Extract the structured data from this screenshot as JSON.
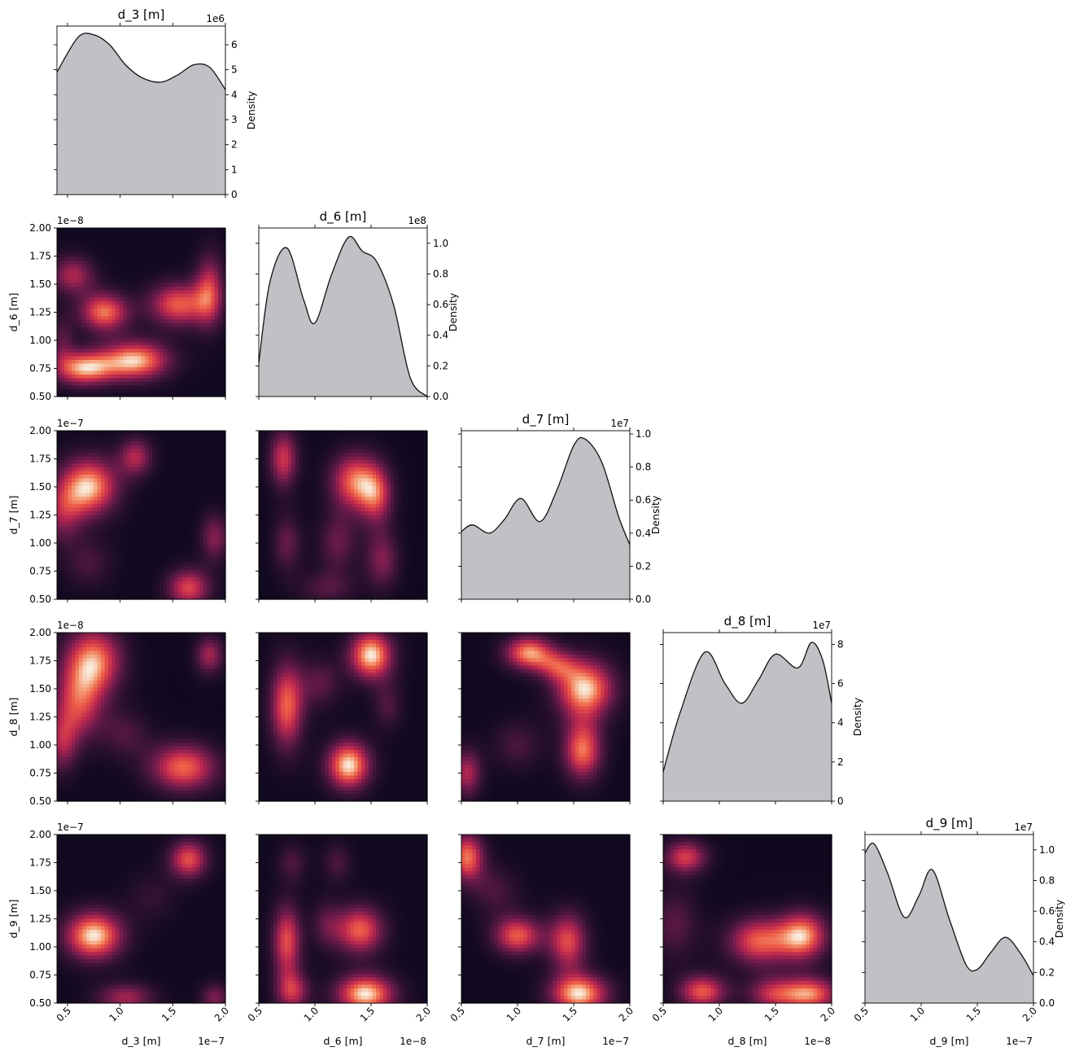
{
  "chart_data": {
    "type": "corner-plot",
    "parameters": [
      "d_3 [m]",
      "d_6 [m]",
      "d_7 [m]",
      "d_8 [m]",
      "d_9 [m]"
    ],
    "ranges": [
      [
        4e-08,
        2e-07
      ],
      [
        5e-09,
        2e-08
      ],
      [
        5e-08,
        2e-07
      ],
      [
        5e-09,
        2e-08
      ],
      [
        5e-08,
        2e-07
      ]
    ],
    "offsets": [
      "1e−7",
      "1e−8",
      "1e−7",
      "1e−8",
      "1e−7"
    ],
    "ticks": [
      {
        "values": [
          0.5,
          1.0,
          1.5,
          2.0
        ],
        "labels": [
          "0.5",
          "1.0",
          "1.5",
          "2.0"
        ]
      },
      {
        "values": [
          0.5,
          1.0,
          1.5,
          2.0
        ],
        "labels": [
          "0.5",
          "1.0",
          "1.5",
          "2.0"
        ]
      },
      {
        "values": [
          0.5,
          1.0,
          1.5,
          2.0
        ],
        "labels": [
          "0.5",
          "1.0",
          "1.5",
          "2.0"
        ]
      },
      {
        "values": [
          0.5,
          1.0,
          1.5,
          2.0
        ],
        "labels": [
          "0.5",
          "1.0",
          "1.5",
          "2.0"
        ]
      },
      {
        "values": [
          0.5,
          1.0,
          1.5,
          2.0
        ],
        "labels": [
          "0.5",
          "1.0",
          "1.5",
          "2.0"
        ]
      }
    ],
    "y_ticks": {
      "values": [
        0.5,
        0.75,
        1.0,
        1.25,
        1.5,
        1.75,
        2.0
      ],
      "labels": [
        "0.50",
        "0.75",
        "1.00",
        "1.25",
        "1.50",
        "1.75",
        "2.00"
      ]
    },
    "density_label": "Density",
    "marginals": [
      {
        "param": "d_3 [m]",
        "offset": "1e6",
        "ymax": 6.75,
        "ticks": [
          0,
          1,
          2,
          3,
          4,
          5,
          6
        ],
        "tick_labels": [
          "0",
          "1",
          "2",
          "3",
          "4",
          "5",
          "6"
        ],
        "x": [
          0.4,
          0.6,
          0.75,
          0.9,
          1.05,
          1.2,
          1.38,
          1.55,
          1.7,
          1.85,
          2.0
        ],
        "y": [
          4.9,
          6.3,
          6.4,
          6.0,
          5.2,
          4.7,
          4.5,
          4.8,
          5.2,
          5.1,
          4.2
        ]
      },
      {
        "param": "d_6 [m]",
        "offset": "1e8",
        "ymax": 1.1,
        "ticks": [
          0.0,
          0.2,
          0.4,
          0.6,
          0.8,
          1.0
        ],
        "tick_labels": [
          "0.0",
          "0.2",
          "0.4",
          "0.6",
          "0.8",
          "1.0"
        ],
        "x": [
          0.5,
          0.6,
          0.75,
          0.9,
          1.0,
          1.15,
          1.3,
          1.42,
          1.55,
          1.7,
          1.85,
          2.0
        ],
        "y": [
          0.22,
          0.75,
          0.97,
          0.63,
          0.48,
          0.8,
          1.04,
          0.95,
          0.88,
          0.6,
          0.12,
          0.0
        ]
      },
      {
        "param": "d_7 [m]",
        "offset": "1e7",
        "ymax": 1.02,
        "ticks": [
          0.0,
          0.2,
          0.4,
          0.6,
          0.8,
          1.0
        ],
        "tick_labels": [
          "0.0",
          "0.2",
          "0.4",
          "0.6",
          "0.8",
          "1.0"
        ],
        "x": [
          0.5,
          0.6,
          0.75,
          0.88,
          1.03,
          1.2,
          1.35,
          1.5,
          1.6,
          1.75,
          1.9,
          2.0
        ],
        "y": [
          0.41,
          0.45,
          0.4,
          0.48,
          0.61,
          0.47,
          0.66,
          0.93,
          0.97,
          0.83,
          0.5,
          0.33
        ]
      },
      {
        "param": "d_8 [m]",
        "offset": "1e7",
        "ymax": 8.6,
        "ticks": [
          0,
          2,
          4,
          6,
          8
        ],
        "tick_labels": [
          "0",
          "2",
          "4",
          "6",
          "8"
        ],
        "x": [
          0.5,
          0.65,
          0.87,
          1.05,
          1.2,
          1.35,
          1.5,
          1.7,
          1.82,
          1.92,
          2.0
        ],
        "y": [
          1.5,
          4.5,
          7.6,
          6.0,
          5.0,
          6.2,
          7.5,
          6.8,
          8.1,
          7.2,
          5.0
        ]
      },
      {
        "param": "d_9 [m]",
        "offset": "1e7",
        "ymax": 1.1,
        "ticks": [
          0.0,
          0.2,
          0.4,
          0.6,
          0.8,
          1.0
        ],
        "tick_labels": [
          "0.0",
          "0.2",
          "0.4",
          "0.6",
          "0.8",
          "1.0"
        ],
        "x": [
          0.5,
          0.58,
          0.7,
          0.85,
          0.98,
          1.1,
          1.25,
          1.4,
          1.5,
          1.62,
          1.75,
          1.88,
          2.0
        ],
        "y": [
          0.98,
          1.04,
          0.85,
          0.56,
          0.7,
          0.87,
          0.55,
          0.25,
          0.22,
          0.33,
          0.43,
          0.33,
          0.18
        ]
      }
    ],
    "heatmaps": [
      {
        "row": 1,
        "col": 0,
        "blobs": [
          [
            0.55,
            1.58,
            0.09,
            0.08,
            0.55
          ],
          [
            0.85,
            1.25,
            0.1,
            0.08,
            0.8
          ],
          [
            1.55,
            1.32,
            0.12,
            0.09,
            0.75
          ],
          [
            1.85,
            1.45,
            0.06,
            0.15,
            0.6
          ],
          [
            0.65,
            0.75,
            0.12,
            0.07,
            0.85
          ],
          [
            1.15,
            0.82,
            0.14,
            0.08,
            0.9
          ],
          [
            0.45,
            1.0,
            0.05,
            0.1,
            0.3
          ]
        ]
      },
      {
        "row": 2,
        "col": 0,
        "blobs": [
          [
            0.7,
            1.5,
            0.12,
            0.12,
            1.0
          ],
          [
            1.15,
            1.77,
            0.07,
            0.08,
            0.6
          ],
          [
            0.45,
            1.25,
            0.08,
            0.12,
            0.45
          ],
          [
            1.9,
            1.05,
            0.06,
            0.1,
            0.5
          ],
          [
            1.65,
            0.6,
            0.09,
            0.08,
            0.75
          ],
          [
            0.7,
            0.82,
            0.1,
            0.1,
            0.3
          ]
        ]
      },
      {
        "row": 2,
        "col": 1,
        "blobs": [
          [
            0.72,
            1.75,
            0.06,
            0.12,
            0.85
          ],
          [
            1.35,
            1.55,
            0.1,
            0.12,
            1.0
          ],
          [
            1.55,
            1.42,
            0.07,
            0.12,
            0.75
          ],
          [
            0.75,
            1.0,
            0.06,
            0.12,
            0.5
          ],
          [
            1.2,
            1.0,
            0.08,
            0.12,
            0.5
          ],
          [
            1.6,
            0.85,
            0.07,
            0.12,
            0.6
          ],
          [
            1.1,
            0.6,
            0.12,
            0.07,
            0.4
          ]
        ]
      },
      {
        "row": 3,
        "col": 0,
        "blobs": [
          [
            0.75,
            1.75,
            0.12,
            0.14,
            1.0
          ],
          [
            0.6,
            1.35,
            0.1,
            0.15,
            0.75
          ],
          [
            1.85,
            1.8,
            0.06,
            0.08,
            0.65
          ],
          [
            1.6,
            0.8,
            0.14,
            0.1,
            0.95
          ],
          [
            0.45,
            1.0,
            0.06,
            0.12,
            0.55
          ],
          [
            1.05,
            1.1,
            0.1,
            0.1,
            0.35
          ]
        ]
      },
      {
        "row": 3,
        "col": 1,
        "blobs": [
          [
            1.5,
            1.8,
            0.09,
            0.1,
            1.0
          ],
          [
            0.75,
            1.35,
            0.07,
            0.18,
            0.8
          ],
          [
            1.3,
            0.82,
            0.09,
            0.1,
            1.0
          ],
          [
            1.05,
            1.55,
            0.08,
            0.1,
            0.35
          ],
          [
            1.65,
            1.35,
            0.06,
            0.1,
            0.3
          ]
        ]
      },
      {
        "row": 3,
        "col": 2,
        "blobs": [
          [
            1.1,
            1.82,
            0.1,
            0.07,
            0.9
          ],
          [
            1.6,
            1.5,
            0.12,
            0.12,
            1.0
          ],
          [
            1.58,
            0.95,
            0.08,
            0.12,
            0.85
          ],
          [
            0.55,
            0.75,
            0.06,
            0.1,
            0.6
          ],
          [
            1.0,
            1.0,
            0.1,
            0.1,
            0.3
          ],
          [
            1.35,
            1.7,
            0.08,
            0.06,
            0.45
          ]
        ]
      },
      {
        "row": 4,
        "col": 0,
        "blobs": [
          [
            0.75,
            1.1,
            0.12,
            0.1,
            1.0
          ],
          [
            1.65,
            1.78,
            0.08,
            0.08,
            0.75
          ],
          [
            1.05,
            0.55,
            0.12,
            0.06,
            0.55
          ],
          [
            1.9,
            0.55,
            0.06,
            0.06,
            0.45
          ],
          [
            1.3,
            1.45,
            0.1,
            0.1,
            0.2
          ]
        ]
      },
      {
        "row": 4,
        "col": 1,
        "blobs": [
          [
            0.75,
            1.05,
            0.06,
            0.15,
            0.75
          ],
          [
            1.4,
            1.15,
            0.1,
            0.1,
            0.8
          ],
          [
            1.45,
            0.58,
            0.12,
            0.08,
            1.0
          ],
          [
            0.8,
            0.6,
            0.07,
            0.08,
            0.6
          ],
          [
            0.8,
            1.75,
            0.06,
            0.08,
            0.3
          ],
          [
            1.2,
            1.75,
            0.06,
            0.08,
            0.3
          ],
          [
            1.1,
            1.2,
            0.06,
            0.1,
            0.3
          ]
        ]
      },
      {
        "row": 4,
        "col": 2,
        "blobs": [
          [
            0.55,
            1.8,
            0.07,
            0.1,
            0.85
          ],
          [
            1.0,
            1.1,
            0.1,
            0.08,
            0.8
          ],
          [
            1.45,
            1.05,
            0.08,
            0.12,
            0.75
          ],
          [
            1.55,
            0.58,
            0.12,
            0.08,
            1.0
          ],
          [
            0.8,
            1.5,
            0.1,
            0.1,
            0.3
          ]
        ]
      },
      {
        "row": 4,
        "col": 3,
        "blobs": [
          [
            0.7,
            1.8,
            0.09,
            0.07,
            0.8
          ],
          [
            1.35,
            1.05,
            0.13,
            0.1,
            0.9
          ],
          [
            1.75,
            1.1,
            0.1,
            0.1,
            1.0
          ],
          [
            0.85,
            0.6,
            0.1,
            0.07,
            0.9
          ],
          [
            1.8,
            0.58,
            0.12,
            0.07,
            1.0
          ],
          [
            1.45,
            0.58,
            0.1,
            0.07,
            0.6
          ],
          [
            0.6,
            1.2,
            0.1,
            0.15,
            0.4
          ]
        ]
      }
    ]
  }
}
